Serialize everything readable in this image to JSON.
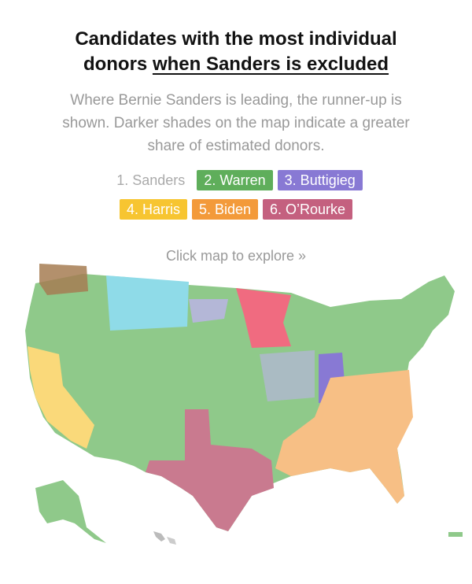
{
  "title": {
    "line1": "Candidates with the most individual",
    "line2_prefix": "donors ",
    "line2_underlined": "when Sanders is excluded"
  },
  "subtitle": "Where Bernie Sanders is leading, the runner-up is shown. Darker shades on the map indicate a greater share of estimated donors.",
  "legend": [
    {
      "label": "1. Sanders",
      "color": "#ffffff",
      "style": "plain"
    },
    {
      "label": "2. Warren",
      "color": "#5fae5b"
    },
    {
      "label": "3. Buttigieg",
      "color": "#8879d4"
    },
    {
      "label": "4. Harris",
      "color": "#f7c531"
    },
    {
      "label": "5. Biden",
      "color": "#f39a3a"
    },
    {
      "label": "6. O’Rourke",
      "color": "#c4607f"
    }
  ],
  "hint": "Click map to explore »",
  "map_colors": {
    "warren": "#8fc98a",
    "warren_dark": "#5fae5b",
    "buttigieg": "#bdb3ea",
    "buttigieg_dark": "#8879d4",
    "harris": "#fad97a",
    "biden": "#f7bf85",
    "orourke": "#c97a8f",
    "harris_montana_like": "#8fdbe8",
    "minnesota": "#f06b80",
    "washington_brown": "#a67c52",
    "neutral": "#eeeeee"
  }
}
